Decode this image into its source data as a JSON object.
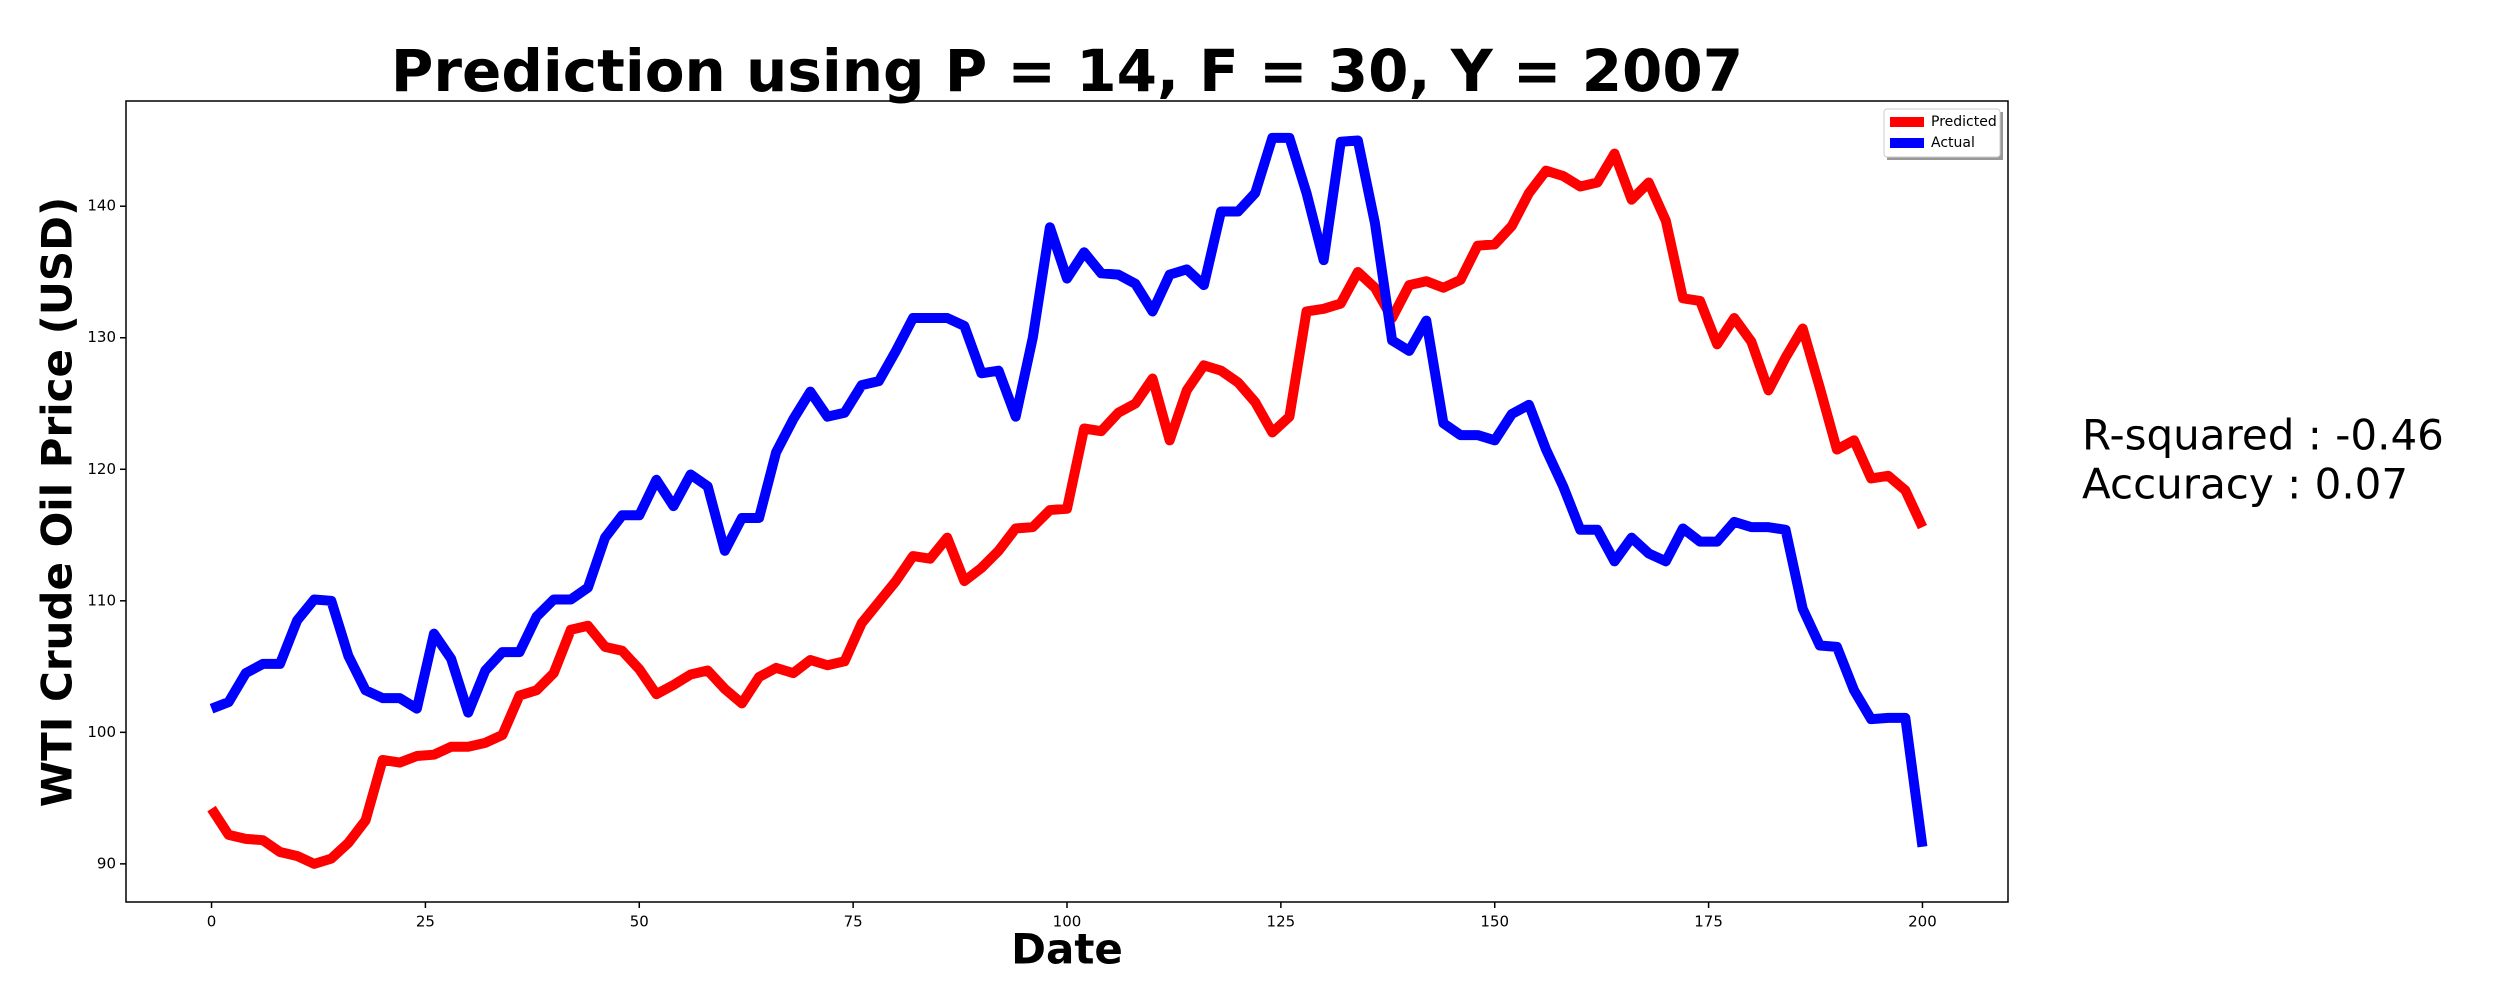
{
  "chart_data": {
    "type": "line",
    "title": "Prediction using P = 14, F = 30, Y = 2007",
    "xlabel": "Date",
    "ylabel": "WTI Crude Oil Price (USD)",
    "annotations": [
      "R-squared : -0.46",
      "Accuracy : 0.07"
    ],
    "legend": "upper right",
    "xlim": [
      -10,
      210
    ],
    "ylim": [
      87.1,
      148.0
    ],
    "xticks": [
      0,
      25,
      50,
      75,
      100,
      125,
      150,
      175,
      200
    ],
    "yticks": [
      90,
      100,
      110,
      120,
      130,
      140
    ],
    "x": [
      0,
      2,
      4,
      6,
      8,
      10,
      12,
      14,
      16,
      18,
      20,
      22,
      24,
      26,
      28,
      30,
      32,
      34,
      36,
      38,
      40,
      42,
      44,
      46,
      48,
      50,
      52,
      54,
      56,
      58,
      60,
      62,
      64,
      66,
      68,
      70,
      72,
      74,
      76,
      78,
      80,
      82,
      84,
      86,
      88,
      90,
      92,
      94,
      96,
      98,
      100,
      102,
      104,
      106,
      108,
      110,
      112,
      114,
      116,
      118,
      120,
      122,
      124,
      126,
      128,
      130,
      132,
      134,
      136,
      138,
      140,
      142,
      144,
      146,
      148,
      150,
      152,
      154,
      156,
      158,
      160,
      162,
      164,
      166,
      168,
      170,
      172,
      174,
      176,
      178,
      180,
      182,
      184,
      186,
      188,
      190,
      192,
      194,
      196,
      198,
      200
    ],
    "series": [
      {
        "name": "Predicted",
        "color": "#ff0000",
        "values": [
          94.2,
          92.2,
          91.9,
          91.8,
          90.9,
          90.6,
          90.0,
          90.4,
          91.6,
          93.3,
          97.9,
          97.7,
          98.2,
          98.3,
          98.9,
          98.9,
          99.2,
          99.8,
          102.8,
          103.2,
          104.5,
          107.8,
          108.1,
          106.5,
          106.2,
          104.8,
          102.9,
          103.6,
          104.4,
          104.7,
          103.3,
          102.2,
          104.2,
          104.9,
          104.5,
          105.5,
          105.1,
          105.4,
          108.3,
          109.9,
          111.5,
          113.4,
          113.2,
          114.8,
          111.5,
          112.5,
          113.8,
          115.5,
          115.6,
          116.9,
          117.0,
          123.1,
          122.9,
          124.3,
          125.0,
          126.9,
          122.2,
          126.0,
          127.9,
          127.5,
          126.6,
          125.1,
          122.8,
          124.0,
          132.0,
          132.2,
          132.6,
          135.0,
          133.8,
          131.5,
          134.0,
          134.3,
          133.8,
          134.4,
          137.0,
          137.1,
          138.5,
          141.0,
          142.7,
          142.3,
          141.5,
          141.8,
          144.0,
          140.5,
          141.8,
          138.9,
          133.0,
          132.8,
          129.5,
          131.5,
          129.7,
          126.0,
          128.5,
          130.7,
          126.2,
          121.5,
          122.2,
          119.3,
          119.5,
          118.4,
          115.6
        ]
      },
      {
        "name": "Actual",
        "color": "#0000ff",
        "values": [
          101.8,
          102.3,
          104.5,
          105.2,
          105.2,
          108.5,
          110.1,
          110.0,
          105.8,
          103.2,
          102.6,
          102.6,
          101.8,
          107.5,
          105.6,
          101.5,
          104.7,
          106.1,
          106.1,
          108.8,
          110.1,
          110.1,
          111.0,
          114.8,
          116.5,
          116.5,
          119.2,
          117.2,
          119.6,
          118.7,
          113.8,
          116.3,
          116.3,
          121.3,
          123.8,
          125.9,
          124.0,
          124.3,
          126.4,
          126.7,
          129.0,
          131.5,
          131.5,
          131.5,
          130.9,
          127.3,
          127.5,
          124.0,
          130.0,
          138.4,
          134.5,
          136.5,
          134.9,
          134.8,
          134.1,
          132.0,
          134.8,
          135.2,
          134.0,
          139.6,
          139.6,
          141.0,
          145.2,
          145.2,
          141.0,
          135.9,
          144.9,
          145.0,
          138.7,
          129.8,
          129.0,
          131.3,
          123.5,
          122.6,
          122.6,
          122.2,
          124.2,
          124.9,
          121.5,
          118.7,
          115.4,
          115.4,
          113.0,
          114.8,
          113.6,
          113.0,
          115.5,
          114.5,
          114.5,
          116.0,
          115.6,
          115.6,
          115.4,
          109.4,
          106.6,
          106.5,
          103.2,
          101.0,
          101.1,
          101.1,
          91.3
        ]
      }
    ]
  }
}
